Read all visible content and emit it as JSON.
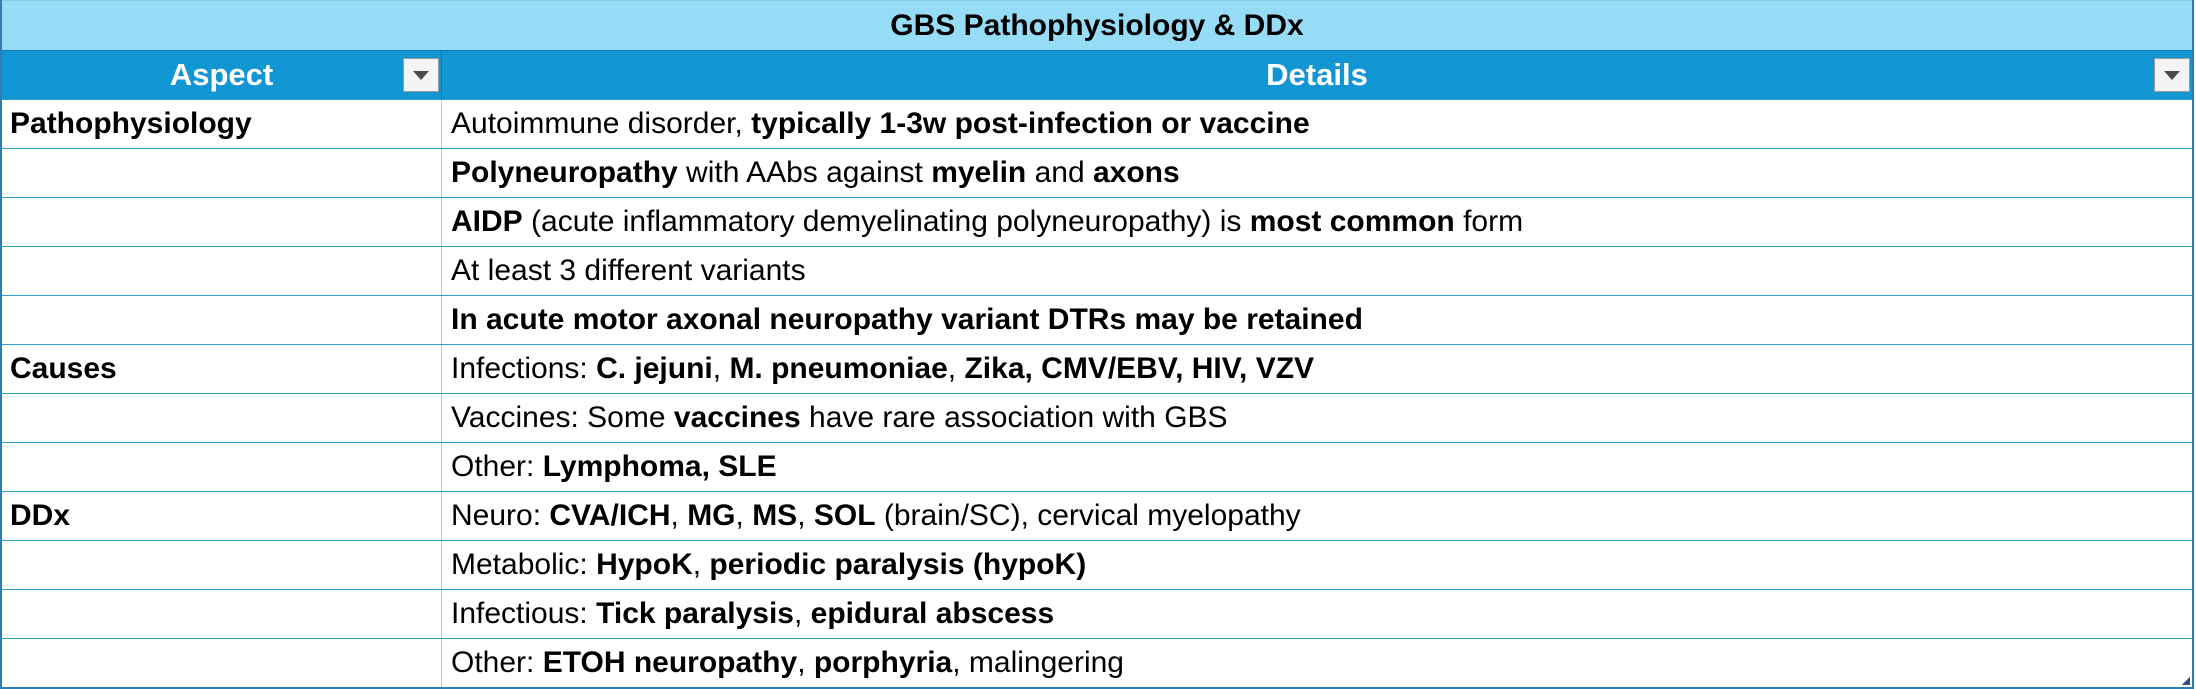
{
  "table": {
    "title": "GBS Pathophysiology & DDx",
    "headers": {
      "aspect": "Aspect",
      "details": "Details"
    },
    "rows": [
      {
        "aspect": "Pathophysiology",
        "details": [
          {
            "t": "Autoimmune disorder, ",
            "b": false
          },
          {
            "t": "typically 1-3w post-infection or vaccine",
            "b": true
          }
        ]
      },
      {
        "aspect": "",
        "details": [
          {
            "t": "Polyneuropathy",
            "b": true
          },
          {
            "t": " with AAbs against ",
            "b": false
          },
          {
            "t": "myelin",
            "b": true
          },
          {
            "t": " and ",
            "b": false
          },
          {
            "t": "axons",
            "b": true
          }
        ]
      },
      {
        "aspect": "",
        "details": [
          {
            "t": "AIDP",
            "b": true
          },
          {
            "t": " (acute inflammatory demyelinating polyneuropathy) is ",
            "b": false
          },
          {
            "t": "most common",
            "b": true
          },
          {
            "t": " form",
            "b": false
          }
        ]
      },
      {
        "aspect": "",
        "details": [
          {
            "t": "At least 3 different variants",
            "b": false
          }
        ]
      },
      {
        "aspect": "",
        "details": [
          {
            "t": "In acute motor axonal neuropathy variant DTRs may be retained",
            "b": true
          }
        ]
      },
      {
        "aspect": "Causes",
        "details": [
          {
            "t": "Infections: ",
            "b": false
          },
          {
            "t": "C. jejuni",
            "b": true
          },
          {
            "t": ", ",
            "b": false
          },
          {
            "t": "M. pneumoniae",
            "b": true
          },
          {
            "t": ", ",
            "b": false
          },
          {
            "t": "Zika, CMV/EBV, HIV, VZV",
            "b": true
          }
        ]
      },
      {
        "aspect": "",
        "details": [
          {
            "t": "Vaccines: Some ",
            "b": false
          },
          {
            "t": "vaccines",
            "b": true
          },
          {
            "t": " have rare association with GBS",
            "b": false
          }
        ]
      },
      {
        "aspect": "",
        "details": [
          {
            "t": "Other: ",
            "b": false
          },
          {
            "t": "Lymphoma, SLE",
            "b": true
          }
        ]
      },
      {
        "aspect": "DDx",
        "details": [
          {
            "t": "Neuro: ",
            "b": false
          },
          {
            "t": "CVA/ICH",
            "b": true
          },
          {
            "t": ", ",
            "b": false
          },
          {
            "t": "MG",
            "b": true
          },
          {
            "t": ", ",
            "b": false
          },
          {
            "t": "MS",
            "b": true
          },
          {
            "t": ", ",
            "b": false
          },
          {
            "t": "SOL",
            "b": true
          },
          {
            "t": " (brain/SC), cervical myelopathy",
            "b": false
          }
        ]
      },
      {
        "aspect": "",
        "details": [
          {
            "t": "Metabolic: ",
            "b": false
          },
          {
            "t": "HypoK",
            "b": true
          },
          {
            "t": ", ",
            "b": false
          },
          {
            "t": "periodic paralysis (hypoK)",
            "b": true
          }
        ]
      },
      {
        "aspect": "",
        "details": [
          {
            "t": "Infectious: ",
            "b": false
          },
          {
            "t": "Tick paralysis",
            "b": true
          },
          {
            "t": ", ",
            "b": false
          },
          {
            "t": "epidural abscess",
            "b": true
          }
        ]
      },
      {
        "aspect": "",
        "details": [
          {
            "t": "Other: ",
            "b": false
          },
          {
            "t": "ETOH neuropathy",
            "b": true
          },
          {
            "t": ", ",
            "b": false
          },
          {
            "t": "porphyria",
            "b": true
          },
          {
            "t": ", malingering",
            "b": false
          }
        ]
      }
    ]
  },
  "icons": {
    "filter": "dropdown-filter-icon",
    "resize": "resize-handle-icon"
  },
  "colors": {
    "title_bg": "#97dcf7",
    "header_bg": "#1296d3",
    "header_text": "#ffffff",
    "row_border": "#2f9fd0"
  }
}
